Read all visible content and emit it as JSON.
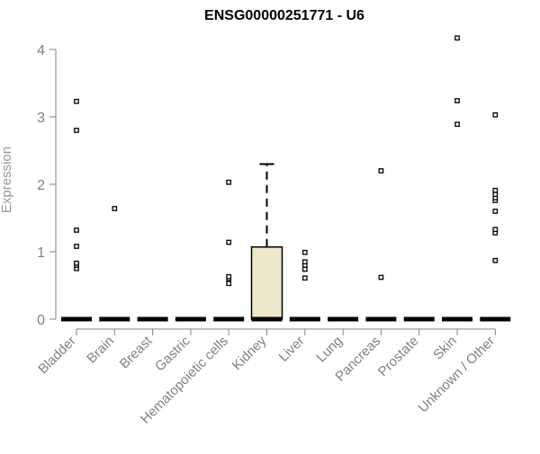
{
  "chart_data": {
    "type": "box",
    "title": "ENSG00000251771 - U6",
    "ylabel": "Expression",
    "xlabel": "",
    "ylim": [
      0,
      4.3
    ],
    "yticks": [
      0,
      1,
      2,
      3,
      4
    ],
    "grid": false,
    "categories": [
      "Bladder",
      "Brain",
      "Breast",
      "Gastric",
      "Hematopoietic cells",
      "Kidney",
      "Liver",
      "Lung",
      "Pancreas",
      "Prostate",
      "Skin",
      "Unknown / Other"
    ],
    "boxes": [
      {
        "category": "Bladder",
        "q1": 0,
        "median": 0,
        "q3": 0,
        "whisker_low": 0,
        "whisker_high": 0,
        "outliers": [
          0.75,
          0.8,
          0.83,
          1.08,
          1.32,
          2.8,
          3.23
        ]
      },
      {
        "category": "Brain",
        "q1": 0,
        "median": 0,
        "q3": 0,
        "whisker_low": 0,
        "whisker_high": 0,
        "outliers": [
          1.64
        ]
      },
      {
        "category": "Breast",
        "q1": 0,
        "median": 0,
        "q3": 0,
        "whisker_low": 0,
        "whisker_high": 0,
        "outliers": []
      },
      {
        "category": "Gastric",
        "q1": 0,
        "median": 0,
        "q3": 0,
        "whisker_low": 0,
        "whisker_high": 0,
        "outliers": []
      },
      {
        "category": "Hematopoietic cells",
        "q1": 0,
        "median": 0,
        "q3": 0,
        "whisker_low": 0,
        "whisker_high": 0,
        "outliers": [
          0.53,
          0.6,
          0.63,
          1.14,
          2.03
        ]
      },
      {
        "category": "Kidney",
        "q1": 0,
        "median": 0,
        "q3": 1.07,
        "whisker_low": 0,
        "whisker_high": 2.3,
        "outliers": []
      },
      {
        "category": "Liver",
        "q1": 0,
        "median": 0,
        "q3": 0,
        "whisker_low": 0,
        "whisker_high": 0,
        "outliers": [
          0.61,
          0.74,
          0.8,
          0.85,
          0.99
        ]
      },
      {
        "category": "Lung",
        "q1": 0,
        "median": 0,
        "q3": 0,
        "whisker_low": 0,
        "whisker_high": 0,
        "outliers": []
      },
      {
        "category": "Pancreas",
        "q1": 0,
        "median": 0,
        "q3": 0,
        "whisker_low": 0,
        "whisker_high": 0,
        "outliers": [
          0.62,
          2.2
        ]
      },
      {
        "category": "Prostate",
        "q1": 0,
        "median": 0,
        "q3": 0,
        "whisker_low": 0,
        "whisker_high": 0,
        "outliers": []
      },
      {
        "category": "Skin",
        "q1": 0,
        "median": 0,
        "q3": 0,
        "whisker_low": 0,
        "whisker_high": 0,
        "outliers": [
          2.89,
          3.24,
          4.17
        ]
      },
      {
        "category": "Unknown / Other",
        "q1": 0,
        "median": 0,
        "q3": 0,
        "whisker_low": 0,
        "whisker_high": 0,
        "outliers": [
          0.87,
          1.28,
          1.33,
          1.6,
          1.76,
          1.8,
          1.85,
          1.91,
          3.03
        ]
      }
    ],
    "box_fill": "#ede7cc",
    "axis_color": "#808080",
    "mark_color": "#000000"
  }
}
